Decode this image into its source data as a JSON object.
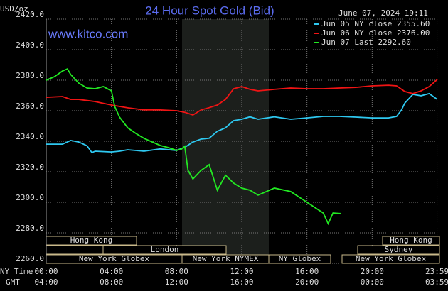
{
  "chart_data": {
    "type": "line",
    "title": "24 Hour Spot Gold (Bid)",
    "y_label": "USD/oz",
    "timestamp": "June 07, 2024 19:11",
    "source": "www.kitco.com",
    "x_row_labels": [
      "NY Time",
      "GMT"
    ],
    "xlim": [
      0,
      24
    ],
    "xticks": [
      {
        "value": 0,
        "label": "00:00"
      },
      {
        "value": 4,
        "label": "04:00"
      },
      {
        "value": 8,
        "label": "08:00"
      },
      {
        "value": 12,
        "label": "12:00"
      },
      {
        "value": 16,
        "label": "16:00"
      },
      {
        "value": 20,
        "label": "20:00"
      },
      {
        "value": 23.98,
        "label": "23:59"
      }
    ],
    "gmt_labels": [
      "04:00",
      "08:00",
      "12:00",
      "16:00",
      "20:00",
      "00:00",
      "03:59"
    ],
    "ylim": [
      2260,
      2420
    ],
    "yticks": [
      {
        "value": 2260,
        "label": "2260.0"
      },
      {
        "value": 2280,
        "label": "2280.0"
      },
      {
        "value": 2300,
        "label": "2300.0"
      },
      {
        "value": 2320,
        "label": "2320.0"
      },
      {
        "value": 2340,
        "label": "2340.0"
      },
      {
        "value": 2360,
        "label": "2360.0"
      },
      {
        "value": 2380,
        "label": "2380.0"
      },
      {
        "value": 2400,
        "label": "2400.0"
      },
      {
        "value": 2420,
        "label": "2420.0"
      }
    ],
    "grid": true,
    "sessions": [
      "Hong Kong",
      "London",
      "New York Globex",
      "New York NYMEX",
      "NY Globex",
      "Hong Kong",
      "Sydney",
      "New York Globex"
    ],
    "series": [
      {
        "name": "Jun 05 NY close 2355.60",
        "color": "#2ec8f0",
        "x": [
          0,
          1,
          1.5,
          2,
          2.5,
          2.8,
          3,
          4,
          4.5,
          5,
          6,
          7,
          8,
          8.5,
          9,
          9.5,
          10,
          10.5,
          11,
          11.5,
          12,
          12.5,
          13,
          14,
          15,
          16,
          17,
          18,
          19,
          20,
          21,
          21.5,
          21.8,
          22,
          22.5,
          23,
          23.5,
          24
        ],
        "values": [
          2338.1,
          2338.1,
          2340.5,
          2339.5,
          2337,
          2332.6,
          2333.5,
          2333,
          2333.5,
          2334.4,
          2333.5,
          2335,
          2334,
          2336,
          2339.5,
          2341.4,
          2342,
          2346.5,
          2348.8,
          2353.5,
          2354.4,
          2356,
          2354.4,
          2356,
          2354.4,
          2355.3,
          2356.3,
          2356.3,
          2355.8,
          2355.3,
          2355.3,
          2356.3,
          2360.5,
          2365,
          2370.7,
          2369.8,
          2371.2,
          2367.4
        ]
      },
      {
        "name": "Jun 06 NY close 2376.00",
        "color": "#f01414",
        "x": [
          0,
          1,
          1.5,
          2,
          3,
          4,
          5,
          6,
          7,
          8,
          8.5,
          9,
          9.5,
          10,
          10.5,
          11,
          11.5,
          12,
          12.5,
          13,
          14,
          15,
          16,
          17,
          18,
          19,
          20,
          21,
          21.5,
          22,
          22.5,
          23,
          23.5,
          24
        ],
        "values": [
          2368.8,
          2369.3,
          2367.4,
          2367.4,
          2366,
          2363.7,
          2361.9,
          2360.5,
          2360.5,
          2360,
          2359,
          2357.2,
          2360.5,
          2362,
          2363.7,
          2367.4,
          2374.4,
          2375.8,
          2374,
          2373,
          2374,
          2374.9,
          2374.4,
          2374.4,
          2374.9,
          2375.3,
          2376.3,
          2376.7,
          2376.3,
          2372.6,
          2371.2,
          2373,
          2375.8,
          2380.5
        ]
      },
      {
        "name": "Jun 07 Last 2292.60",
        "color": "#22e822",
        "x": [
          0,
          0.5,
          1,
          1.3,
          1.5,
          2,
          2.5,
          3,
          3.5,
          4,
          4.2,
          4.5,
          5,
          5.5,
          6,
          7,
          7.5,
          8,
          8.3,
          8.5,
          8.7,
          9,
          9.5,
          10,
          10.5,
          11,
          11.5,
          12,
          12.5,
          13,
          14,
          15,
          16,
          17,
          17.3,
          17.6,
          18.1
        ],
        "values": [
          2380,
          2382.3,
          2386,
          2387.4,
          2383.7,
          2378.1,
          2374.9,
          2374.4,
          2375.8,
          2373,
          2362.8,
          2355.8,
          2348.8,
          2345.1,
          2341.9,
          2337.2,
          2335.8,
          2334,
          2334.9,
          2336.7,
          2320.9,
          2315.3,
          2320.9,
          2324.7,
          2307.9,
          2317.7,
          2312.6,
          2309.3,
          2307.9,
          2304.7,
          2309.3,
          2307,
          2300,
          2293,
          2286,
          2293,
          2292.6
        ]
      }
    ]
  }
}
